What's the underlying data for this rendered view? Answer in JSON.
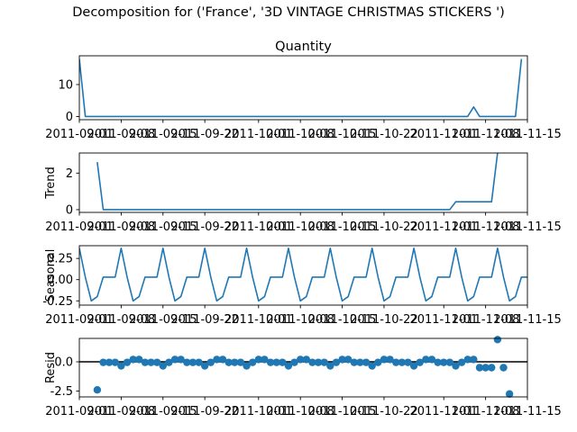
{
  "suptitle": "Decomposition for ('France', '3D VINTAGE CHRISTMAS STICKERS ')",
  "chart_data": [
    {
      "type": "line",
      "panel": "observed",
      "title": "Quantity",
      "ylabel": "",
      "x_start": "2011-09-01",
      "x_end": "2011-11-15",
      "xticks": [
        "2011-09-01",
        "2011-09-08",
        "2011-09-15",
        "2011-09-22",
        "2011-10-01",
        "2011-10-08",
        "2011-10-15",
        "2011-10-22",
        "2011-11-01",
        "2011-11-08",
        "2011-11-15"
      ],
      "ylim": [
        -1,
        19
      ],
      "yticks": [
        0,
        10
      ],
      "color": "#1f77b4",
      "points": [
        [
          "2011-09-01",
          18
        ],
        [
          "2011-09-02",
          0
        ],
        [
          "2011-11-05",
          0
        ],
        [
          "2011-11-06",
          3
        ],
        [
          "2011-11-07",
          0
        ],
        [
          "2011-11-13",
          0
        ],
        [
          "2011-11-14",
          18
        ]
      ]
    },
    {
      "type": "line",
      "panel": "trend",
      "title": "",
      "ylabel": "Trend",
      "x_start": "2011-09-01",
      "x_end": "2011-11-15",
      "xticks": [
        "2011-09-01",
        "2011-09-08",
        "2011-09-15",
        "2011-09-22",
        "2011-10-01",
        "2011-10-08",
        "2011-10-15",
        "2011-10-22",
        "2011-11-01",
        "2011-11-08",
        "2011-11-15"
      ],
      "ylim": [
        -0.15,
        3.1
      ],
      "yticks": [
        0,
        2
      ],
      "color": "#1f77b4",
      "points": [
        [
          "2011-09-04",
          2.6
        ],
        [
          "2011-09-05",
          0
        ],
        [
          "2011-11-02",
          0
        ],
        [
          "2011-11-03",
          0.43
        ],
        [
          "2011-11-09",
          0.43
        ],
        [
          "2011-11-10",
          3.1
        ]
      ]
    },
    {
      "type": "line",
      "panel": "seasonal",
      "title": "",
      "ylabel": "Seasonal",
      "x_start": "2011-09-01",
      "x_end": "2011-11-15",
      "xticks": [
        "2011-09-01",
        "2011-09-08",
        "2011-09-15",
        "2011-09-22",
        "2011-10-01",
        "2011-10-08",
        "2011-10-15",
        "2011-10-22",
        "2011-11-01",
        "2011-11-08",
        "2011-11-15"
      ],
      "ylim": [
        -0.3,
        0.4
      ],
      "yticks": [
        0.25,
        0.0,
        -0.25
      ],
      "color": "#1f77b4",
      "weekly_pattern": [
        0.37,
        0.03,
        -0.25,
        -0.2,
        0.03,
        0.03,
        0.03
      ]
    },
    {
      "type": "scatter",
      "panel": "resid",
      "title": "",
      "ylabel": "Resid",
      "x_start": "2011-09-01",
      "x_end": "2011-11-15",
      "xticks": [
        "2011-09-01",
        "2011-09-08",
        "2011-09-15",
        "2011-09-22",
        "2011-10-01",
        "2011-10-08",
        "2011-10-15",
        "2011-10-22",
        "2011-11-01",
        "2011-11-08",
        "2011-11-15"
      ],
      "ylim": [
        -3.0,
        2.0
      ],
      "yticks": [
        0.0,
        -2.5
      ],
      "baseline": 0,
      "color": "#1f77b4",
      "points": [
        [
          "2011-09-04",
          -2.4
        ],
        [
          "2011-09-05",
          -0.05
        ],
        [
          "2011-09-06",
          -0.05
        ],
        [
          "2011-09-07",
          -0.05
        ],
        [
          "2011-09-08",
          -0.35
        ],
        [
          "2011-09-09",
          -0.05
        ],
        [
          "2011-09-10",
          0.2
        ],
        [
          "2011-09-11",
          0.2
        ],
        [
          "2011-09-12",
          -0.05
        ],
        [
          "2011-09-13",
          -0.05
        ],
        [
          "2011-09-14",
          -0.05
        ],
        [
          "2011-09-15",
          -0.35
        ],
        [
          "2011-09-16",
          -0.05
        ],
        [
          "2011-09-17",
          0.2
        ],
        [
          "2011-09-18",
          0.2
        ],
        [
          "2011-09-19",
          -0.05
        ],
        [
          "2011-09-20",
          -0.05
        ],
        [
          "2011-09-21",
          -0.05
        ],
        [
          "2011-09-22",
          -0.35
        ],
        [
          "2011-09-23",
          -0.05
        ],
        [
          "2011-09-24",
          0.2
        ],
        [
          "2011-09-25",
          0.2
        ],
        [
          "2011-09-26",
          -0.05
        ],
        [
          "2011-09-27",
          -0.05
        ],
        [
          "2011-09-28",
          -0.05
        ],
        [
          "2011-09-29",
          -0.35
        ],
        [
          "2011-09-30",
          -0.05
        ],
        [
          "2011-10-01",
          0.2
        ],
        [
          "2011-10-02",
          0.2
        ],
        [
          "2011-10-03",
          -0.05
        ],
        [
          "2011-10-04",
          -0.05
        ],
        [
          "2011-10-05",
          -0.05
        ],
        [
          "2011-10-06",
          -0.35
        ],
        [
          "2011-10-07",
          -0.05
        ],
        [
          "2011-10-08",
          0.2
        ],
        [
          "2011-10-09",
          0.2
        ],
        [
          "2011-10-10",
          -0.05
        ],
        [
          "2011-10-11",
          -0.05
        ],
        [
          "2011-10-12",
          -0.05
        ],
        [
          "2011-10-13",
          -0.35
        ],
        [
          "2011-10-14",
          -0.05
        ],
        [
          "2011-10-15",
          0.2
        ],
        [
          "2011-10-16",
          0.2
        ],
        [
          "2011-10-17",
          -0.05
        ],
        [
          "2011-10-18",
          -0.05
        ],
        [
          "2011-10-19",
          -0.05
        ],
        [
          "2011-10-20",
          -0.35
        ],
        [
          "2011-10-21",
          -0.05
        ],
        [
          "2011-10-22",
          0.2
        ],
        [
          "2011-10-23",
          0.2
        ],
        [
          "2011-10-24",
          -0.05
        ],
        [
          "2011-10-25",
          -0.05
        ],
        [
          "2011-10-26",
          -0.05
        ],
        [
          "2011-10-27",
          -0.35
        ],
        [
          "2011-10-28",
          -0.05
        ],
        [
          "2011-10-29",
          0.2
        ],
        [
          "2011-10-30",
          0.2
        ],
        [
          "2011-10-31",
          -0.05
        ],
        [
          "2011-11-01",
          -0.05
        ],
        [
          "2011-11-02",
          -0.05
        ],
        [
          "2011-11-03",
          -0.35
        ],
        [
          "2011-11-04",
          -0.05
        ],
        [
          "2011-11-05",
          0.2
        ],
        [
          "2011-11-06",
          0.2
        ],
        [
          "2011-11-07",
          -0.5
        ],
        [
          "2011-11-08",
          -0.5
        ],
        [
          "2011-11-09",
          -0.5
        ],
        [
          "2011-11-10",
          1.9
        ],
        [
          "2011-11-11",
          -0.5
        ],
        [
          "2011-11-12",
          -2.75
        ]
      ]
    }
  ]
}
